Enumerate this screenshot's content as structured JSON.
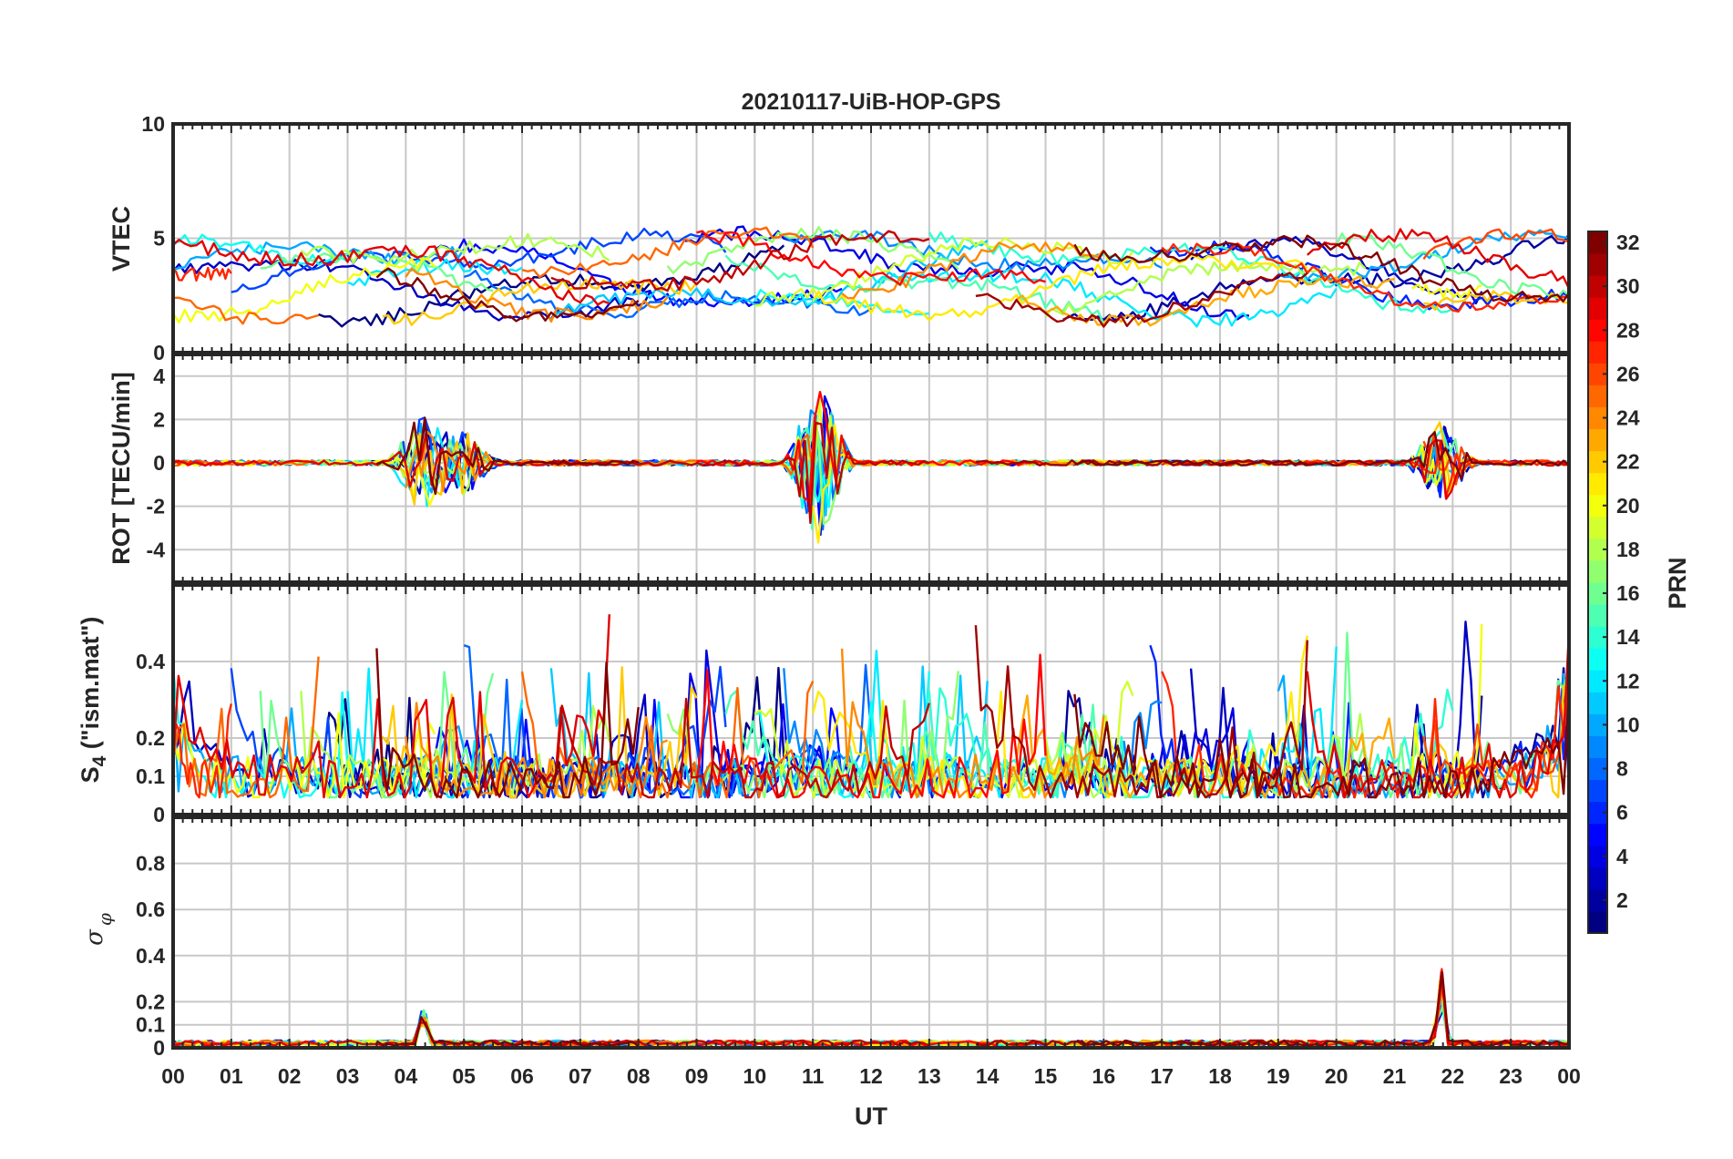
{
  "chart_data": {
    "type": "line",
    "title": "20210117-UiB-HOP-GPS",
    "xlabel": "UT",
    "x_ticks": [
      "00",
      "01",
      "02",
      "03",
      "04",
      "05",
      "06",
      "07",
      "08",
      "09",
      "10",
      "11",
      "12",
      "13",
      "14",
      "15",
      "16",
      "17",
      "18",
      "19",
      "20",
      "21",
      "22",
      "23",
      "00"
    ],
    "xlim_hours": [
      0,
      24
    ],
    "grid": true,
    "panels": [
      {
        "name": "vtec",
        "ylabel": "VTEC",
        "ylim": [
          0,
          10
        ],
        "y_ticks": [
          {
            "v": 0,
            "l": "0"
          },
          {
            "v": 5,
            "l": "5"
          },
          {
            "v": 10,
            "l": "10"
          }
        ],
        "grid_y": [
          5
        ],
        "base": 3.3,
        "wave": 1.4,
        "noise": 0.3,
        "pts": 240,
        "clip": true
      },
      {
        "name": "rot",
        "ylabel": "ROT [TECU/min]",
        "ylim": [
          -5.5,
          5
        ],
        "y_ticks": [
          {
            "v": -4,
            "l": "-4"
          },
          {
            "v": -2,
            "l": "-2"
          },
          {
            "v": 0,
            "l": "0"
          },
          {
            "v": 2,
            "l": "2"
          },
          {
            "v": 4,
            "l": "4"
          }
        ],
        "grid_y": [
          -4,
          -2,
          0,
          2,
          4
        ],
        "base": 0,
        "noise": 0.12,
        "pts": 260,
        "clip": true,
        "bursts": [
          [
            4.3,
            2.6
          ],
          [
            5.0,
            1.5
          ],
          [
            11.1,
            3.8
          ],
          [
            21.8,
            2.0
          ]
        ]
      },
      {
        "name": "s4",
        "ylabel_main": "S",
        "ylabel_sub": "4",
        "ylabel_rest": " (\"ism.mat\")",
        "ylim": [
          0,
          0.6
        ],
        "y_ticks": [
          {
            "v": 0,
            "l": "0"
          },
          {
            "v": 0.1,
            "l": "0.1"
          },
          {
            "v": 0.2,
            "l": "0.2"
          },
          {
            "v": 0.4,
            "l": "0.4"
          }
        ],
        "grid_y": [
          0.1,
          0.2,
          0.4
        ],
        "base": 0.09,
        "noise": 0.06,
        "pts": 260,
        "clip": true,
        "max_value": 0.6
      },
      {
        "name": "sigma_phi",
        "ylabel": "σ",
        "ylabel_sub": "φ",
        "ylim": [
          0,
          1
        ],
        "y_ticks": [
          {
            "v": 0,
            "l": "0"
          },
          {
            "v": 0.1,
            "l": "0.1"
          },
          {
            "v": 0.2,
            "l": "0.2"
          },
          {
            "v": 0.4,
            "l": "0.4"
          },
          {
            "v": 0.6,
            "l": "0.6"
          },
          {
            "v": 0.8,
            "l": "0.8"
          }
        ],
        "grid_y": [
          0.1,
          0.2,
          0.4,
          0.6,
          0.8
        ],
        "base": 0.02,
        "noise": 0.012,
        "pts": 220,
        "clip": true,
        "spikes": [
          [
            4.3,
            0.21
          ],
          [
            21.8,
            0.38
          ]
        ]
      }
    ],
    "colorbar": {
      "label": "PRN",
      "range": [
        1,
        32
      ],
      "ticks": [
        "2",
        "4",
        "6",
        "8",
        "10",
        "12",
        "14",
        "16",
        "18",
        "20",
        "22",
        "24",
        "26",
        "28",
        "30",
        "32"
      ],
      "colormap": "jet"
    },
    "series": [
      {
        "prn": 1,
        "passes": [
          [
            2.5,
            10.5
          ]
        ]
      },
      {
        "prn": 2,
        "passes": [
          [
            15.3,
            24
          ]
        ]
      },
      {
        "prn": 3,
        "passes": [
          [
            0,
            8.2
          ],
          [
            17.5,
            22.5
          ]
        ]
      },
      {
        "prn": 4,
        "passes": [
          [
            8.8,
            18.5
          ]
        ]
      },
      {
        "prn": 5,
        "passes": [
          [
            4.5,
            11.5
          ]
        ]
      },
      {
        "prn": 6,
        "passes": [
          [
            16.8,
            24
          ]
        ]
      },
      {
        "prn": 7,
        "passes": [
          [
            1.0,
            9.5
          ]
        ]
      },
      {
        "prn": 8,
        "passes": [
          [
            5.0,
            12.0
          ]
        ]
      },
      {
        "prn": 9,
        "passes": [
          [
            10.5,
            17.0
          ]
        ]
      },
      {
        "prn": 10,
        "passes": [
          [
            0,
            5.0
          ],
          [
            19.0,
            24
          ]
        ]
      },
      {
        "prn": 11,
        "passes": [
          [
            6.5,
            14.0
          ]
        ]
      },
      {
        "prn": 12,
        "passes": [
          [
            3.0,
            6.0
          ],
          [
            12.0,
            20.0
          ]
        ]
      },
      {
        "prn": 13,
        "passes": [
          [
            0,
            3.0
          ],
          [
            10.0,
            13.0
          ]
        ]
      },
      {
        "prn": 14,
        "passes": [
          [
            13.0,
            22.0
          ]
        ]
      },
      {
        "prn": 15,
        "passes": [
          [
            9.5,
            16.0
          ]
        ]
      },
      {
        "prn": 16,
        "passes": [
          [
            1.5,
            5.5
          ],
          [
            20.0,
            24
          ]
        ]
      },
      {
        "prn": 17,
        "passes": [
          [
            8.5,
            13.5
          ]
        ]
      },
      {
        "prn": 18,
        "passes": [
          [
            2.2,
            7.5
          ],
          [
            15.0,
            20.5
          ]
        ]
      },
      {
        "prn": 19,
        "passes": [
          [
            10.0,
            16.5
          ]
        ]
      },
      {
        "prn": 20,
        "passes": [
          [
            0,
            4.5
          ],
          [
            21.3,
            22.5
          ]
        ]
      },
      {
        "prn": 21,
        "passes": [
          [
            11.0,
            19.5
          ]
        ]
      },
      {
        "prn": 22,
        "passes": [
          [
            3.6,
            9.0
          ],
          [
            21.5,
            24
          ]
        ]
      },
      {
        "prn": 23,
        "passes": [
          [
            14.5,
            21.0
          ]
        ]
      },
      {
        "prn": 24,
        "passes": [
          [
            4.0,
            8.5
          ],
          [
            11.5,
            16.0
          ]
        ]
      },
      {
        "prn": 25,
        "passes": [
          [
            0,
            2.5
          ],
          [
            6.0,
            11.0
          ]
        ]
      },
      {
        "prn": 26,
        "passes": [
          [
            21.5,
            24
          ]
        ]
      },
      {
        "prn": 27,
        "passes": [
          [
            0,
            1.0
          ],
          [
            17.0,
            24
          ]
        ]
      },
      {
        "prn": 28,
        "passes": [
          [
            9.0,
            15.0
          ]
        ]
      },
      {
        "prn": 29,
        "passes": [
          [
            0,
            7.5
          ],
          [
            19.5,
            24
          ]
        ]
      },
      {
        "prn": 30,
        "passes": [
          [
            6.5,
            13.0
          ]
        ]
      },
      {
        "prn": 31,
        "passes": [
          [
            13.8,
            19.5
          ]
        ]
      },
      {
        "prn": 32,
        "passes": [
          [
            3.5,
            8.0
          ],
          [
            15.5,
            24
          ]
        ]
      }
    ]
  }
}
